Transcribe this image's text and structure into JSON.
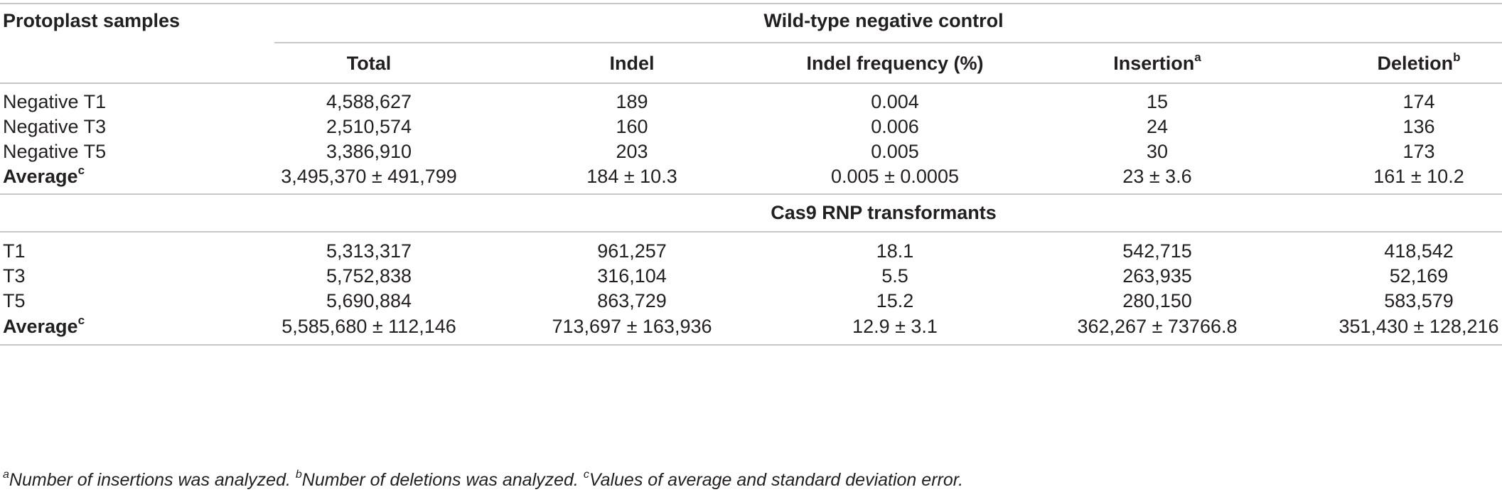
{
  "table": {
    "stub_header": "Protoplast samples",
    "group1_title": "Wild-type negative control",
    "group2_title": "Cas9 RNP transformants",
    "columns": [
      {
        "label": "Total",
        "sup": ""
      },
      {
        "label": "Indel",
        "sup": ""
      },
      {
        "label": "Indel frequency (%)",
        "sup": ""
      },
      {
        "label": "Insertion",
        "sup": "a"
      },
      {
        "label": "Deletion",
        "sup": "b"
      }
    ],
    "group1_rows": [
      {
        "label": "Negative T1",
        "sup": "",
        "cells": [
          "4,588,627",
          "189",
          "0.004",
          "15",
          "174"
        ]
      },
      {
        "label": "Negative T3",
        "sup": "",
        "cells": [
          "2,510,574",
          "160",
          "0.006",
          "24",
          "136"
        ]
      },
      {
        "label": "Negative T5",
        "sup": "",
        "cells": [
          "3,386,910",
          "203",
          "0.005",
          "30",
          "173"
        ]
      },
      {
        "label": "Average",
        "sup": "c",
        "cells": [
          "3,495,370 ± 491,799",
          "184 ± 10.3",
          "0.005 ± 0.0005",
          "23 ± 3.6",
          "161 ± 10.2"
        ]
      }
    ],
    "group2_rows": [
      {
        "label": "T1",
        "sup": "",
        "cells": [
          "5,313,317",
          "961,257",
          "18.1",
          "542,715",
          "418,542"
        ]
      },
      {
        "label": "T3",
        "sup": "",
        "cells": [
          "5,752,838",
          "316,104",
          "5.5",
          "263,935",
          "52,169"
        ]
      },
      {
        "label": "T5",
        "sup": "",
        "cells": [
          "5,690,884",
          "863,729",
          "15.2",
          "280,150",
          "583,579"
        ]
      },
      {
        "label": "Average",
        "sup": "c",
        "cells": [
          "5,585,680 ± 112,146",
          "713,697 ± 163,936",
          "12.9 ± 3.1",
          "362,267 ± 73766.8",
          "351,430 ± 128,216"
        ]
      }
    ]
  },
  "footnote": {
    "a_mark": "a",
    "a_text": "Number of insertions was analyzed. ",
    "b_mark": "b",
    "b_text": "Number of deletions was analyzed. ",
    "c_mark": "c",
    "c_text": "Values of average and standard deviation error."
  }
}
